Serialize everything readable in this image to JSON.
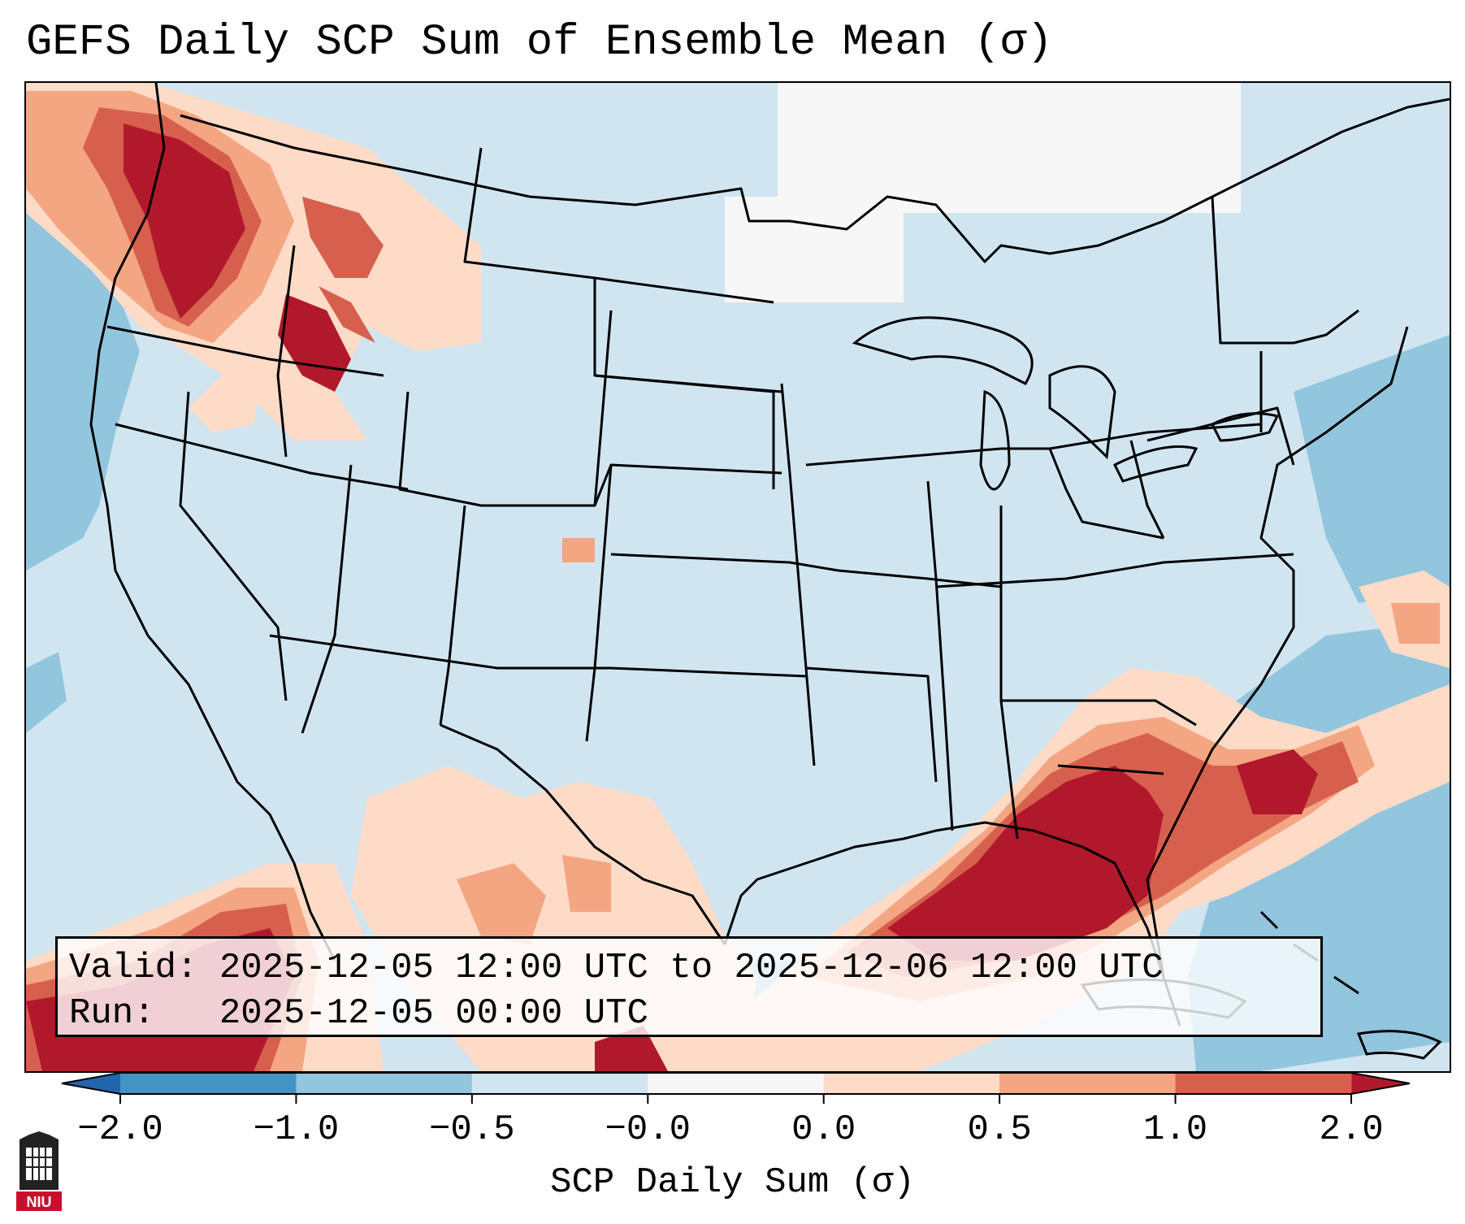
{
  "title": "GEFS Daily SCP Sum of Ensemble Mean (σ)",
  "info": {
    "valid_label": "Valid:",
    "valid_value": "2025-12-05 12:00 UTC to 2025-12-06 12:00 UTC",
    "run_label": "Run:",
    "run_value": "2025-12-05 00:00 UTC"
  },
  "colorbar": {
    "label": "SCP Daily Sum (σ)",
    "ticks": [
      "−2.0",
      "−1.0",
      "−0.5",
      "−0.0",
      "0.0",
      "0.5",
      "1.0",
      "2.0"
    ],
    "bin_colors": [
      "#4393c3",
      "#92c5de",
      "#d1e5f0",
      "#f7f7f7",
      "#fddbc7",
      "#f4a582",
      "#d6604d"
    ],
    "under_color": "#2166ac",
    "over_color": "#b2182b"
  },
  "map_colors": {
    "background": "#d1e5f0",
    "neutral": "#f7f7f7",
    "light_blue": "#92c5de",
    "light_red": "#fddbc7",
    "mid_red": "#f4a582",
    "red": "#d6604d",
    "dark_red": "#b2182b"
  },
  "logo": {
    "text": "NIU",
    "icon": "niu-logo-icon"
  }
}
